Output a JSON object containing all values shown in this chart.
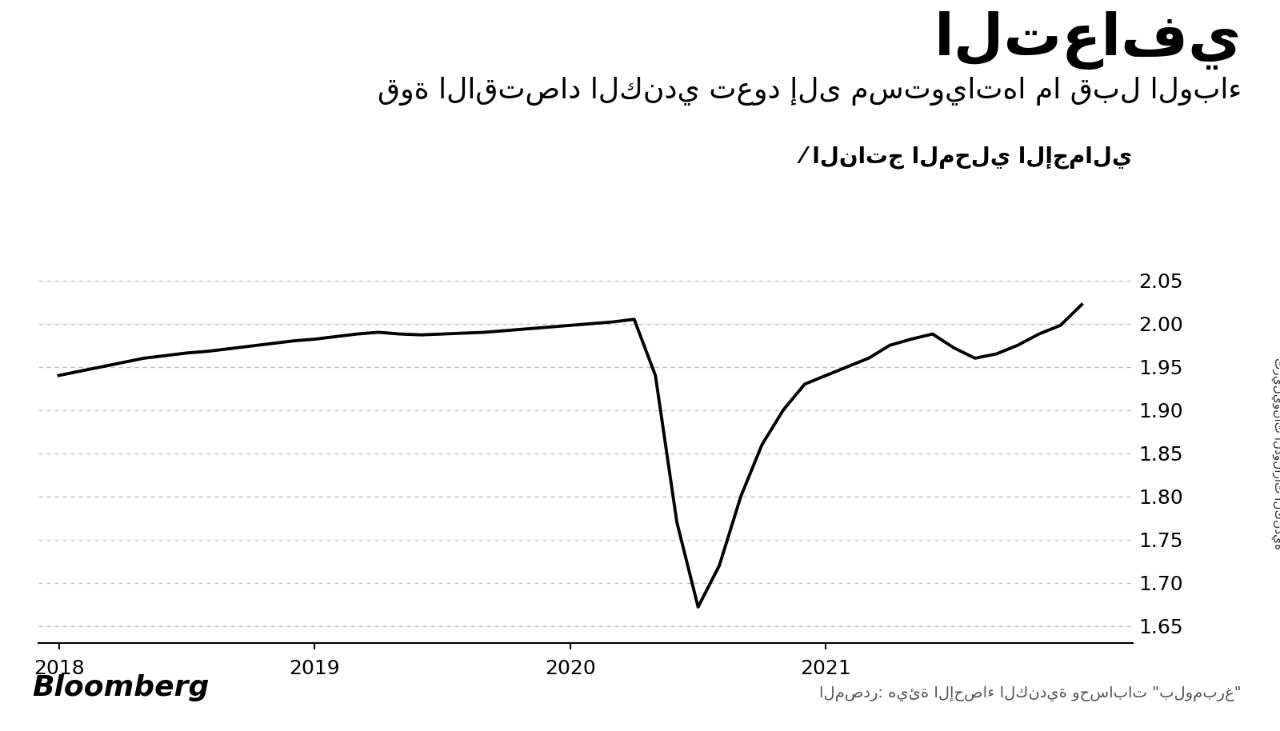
{
  "title_main": "التعافي",
  "title_sub": "قوة الاقتصاد الكندي تعود إلى مستوياتها ما قبل الوباء",
  "legend_label": "الناتج المحلي الإجمالي",
  "ylabel": "تريليونات الدولارات الكندية",
  "source_text": "المصدر: هيئة الإحصاء الكندية وحسابات \"بلومبرغ\"",
  "bloomberg_text": "Bloomberg",
  "ylim": [
    1.63,
    2.07
  ],
  "yticks": [
    1.65,
    1.7,
    1.75,
    1.8,
    1.85,
    1.9,
    1.95,
    2.0,
    2.05
  ],
  "background_color": "#ffffff",
  "line_color": "#000000",
  "grid_color": "#bbbbbb",
  "x_data": [
    2018.0,
    2018.083,
    2018.167,
    2018.25,
    2018.333,
    2018.417,
    2018.5,
    2018.583,
    2018.667,
    2018.75,
    2018.833,
    2018.917,
    2019.0,
    2019.083,
    2019.167,
    2019.25,
    2019.333,
    2019.417,
    2019.5,
    2019.583,
    2019.667,
    2019.75,
    2019.833,
    2019.917,
    2020.0,
    2020.083,
    2020.167,
    2020.25,
    2020.333,
    2020.417,
    2020.5,
    2020.583,
    2020.667,
    2020.75,
    2020.833,
    2020.917,
    2021.0,
    2021.083,
    2021.167,
    2021.25,
    2021.333,
    2021.417,
    2021.5,
    2021.583,
    2021.667,
    2021.75,
    2021.833,
    2021.917,
    2022.0
  ],
  "y_data": [
    1.94,
    1.945,
    1.95,
    1.955,
    1.96,
    1.963,
    1.966,
    1.968,
    1.971,
    1.974,
    1.977,
    1.98,
    1.982,
    1.985,
    1.988,
    1.99,
    1.988,
    1.987,
    1.988,
    1.989,
    1.99,
    1.992,
    1.994,
    1.996,
    1.998,
    2.0,
    2.002,
    2.005,
    1.94,
    1.77,
    1.672,
    1.72,
    1.8,
    1.86,
    1.9,
    1.93,
    1.94,
    1.95,
    1.96,
    1.975,
    1.982,
    1.988,
    1.972,
    1.96,
    1.965,
    1.975,
    1.988,
    1.998,
    2.022
  ],
  "xtick_positions": [
    2018.0,
    2019.0,
    2020.0,
    2021.0
  ],
  "xtick_labels": [
    "2018",
    "2019",
    "2020",
    "2021"
  ],
  "title_fontsize": 52,
  "subtitle_fontsize": 26,
  "legend_fontsize": 20,
  "tick_fontsize": 18,
  "source_fontsize": 14,
  "bloomberg_fontsize": 26
}
